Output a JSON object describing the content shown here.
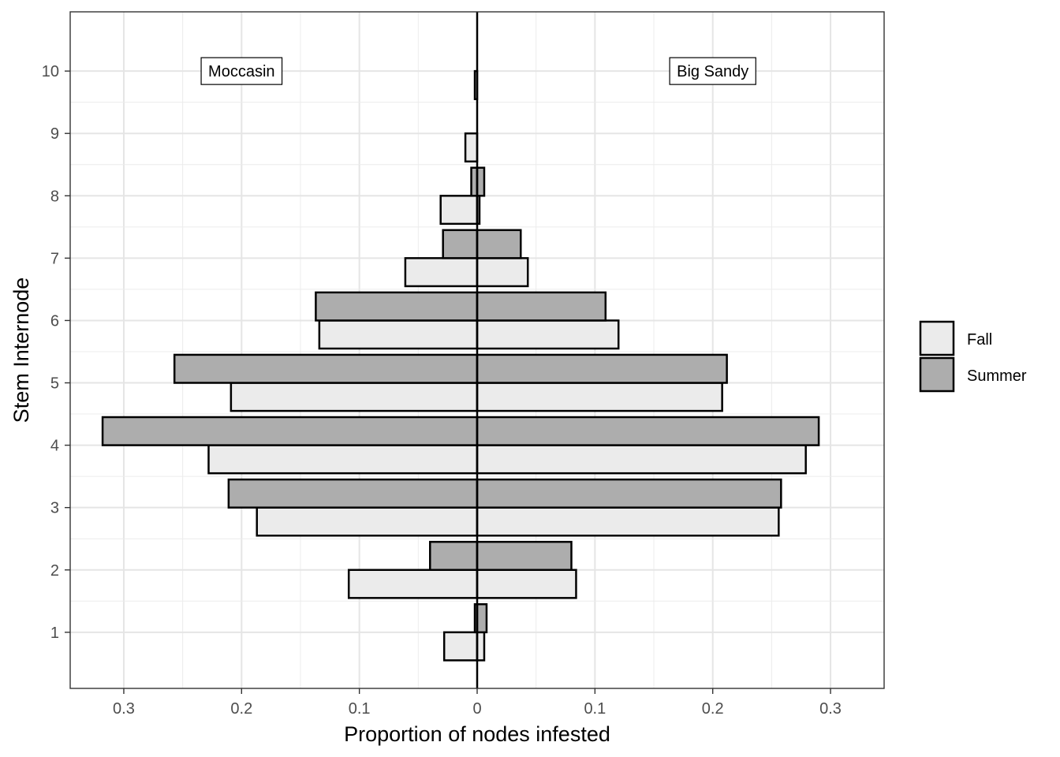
{
  "chart_data": {
    "type": "bar",
    "orientation": "horizontal",
    "xlabel": "Proportion of nodes infested",
    "ylabel": "Stem Internode",
    "xlim": [
      -0.3455,
      0.3455
    ],
    "ylim": [
      0.1,
      10.95
    ],
    "x_ticks": [
      -0.3,
      -0.2,
      -0.1,
      0,
      0.1,
      0.2,
      0.3
    ],
    "x_tick_labels": [
      "0.3",
      "0.2",
      "0.1",
      "0",
      "0.1",
      "0.2",
      "0.3"
    ],
    "y_ticks": [
      1,
      2,
      3,
      4,
      5,
      6,
      7,
      8,
      9,
      10
    ],
    "y_tick_labels": [
      "1",
      "2",
      "3",
      "4",
      "5",
      "6",
      "7",
      "8",
      "9",
      "10"
    ],
    "grid": true,
    "legend_position": "right",
    "annotations": [
      {
        "text": "Moccasin",
        "x": -0.2,
        "y": 10
      },
      {
        "text": "Big Sandy",
        "x": 0.2,
        "y": 10
      }
    ],
    "series": [
      {
        "name": "Fall",
        "color": "#ebebeb",
        "data": [
          {
            "internode": 1,
            "left": -0.028,
            "right": 0.006
          },
          {
            "internode": 2,
            "left": -0.109,
            "right": 0.084
          },
          {
            "internode": 3,
            "left": -0.187,
            "right": 0.256
          },
          {
            "internode": 4,
            "left": -0.228,
            "right": 0.279
          },
          {
            "internode": 5,
            "left": -0.209,
            "right": 0.208
          },
          {
            "internode": 6,
            "left": -0.134,
            "right": 0.12
          },
          {
            "internode": 7,
            "left": -0.061,
            "right": 0.043
          },
          {
            "internode": 8,
            "left": -0.031,
            "right": 0.002
          },
          {
            "internode": 9,
            "left": -0.01,
            "right": 0.0
          },
          {
            "internode": 10,
            "left": -0.002,
            "right": 0.0
          }
        ]
      },
      {
        "name": "Summer",
        "color": "#adadad",
        "data": [
          {
            "internode": 1,
            "left": -0.002,
            "right": 0.008
          },
          {
            "internode": 2,
            "left": -0.04,
            "right": 0.08
          },
          {
            "internode": 3,
            "left": -0.211,
            "right": 0.258
          },
          {
            "internode": 4,
            "left": -0.318,
            "right": 0.29
          },
          {
            "internode": 5,
            "left": -0.257,
            "right": 0.212
          },
          {
            "internode": 6,
            "left": -0.137,
            "right": 0.109
          },
          {
            "internode": 7,
            "left": -0.029,
            "right": 0.037
          },
          {
            "internode": 8,
            "left": -0.005,
            "right": 0.006
          },
          {
            "internode": 9,
            "left": 0,
            "right": 0
          },
          {
            "internode": 10,
            "left": 0,
            "right": 0
          }
        ]
      }
    ]
  }
}
